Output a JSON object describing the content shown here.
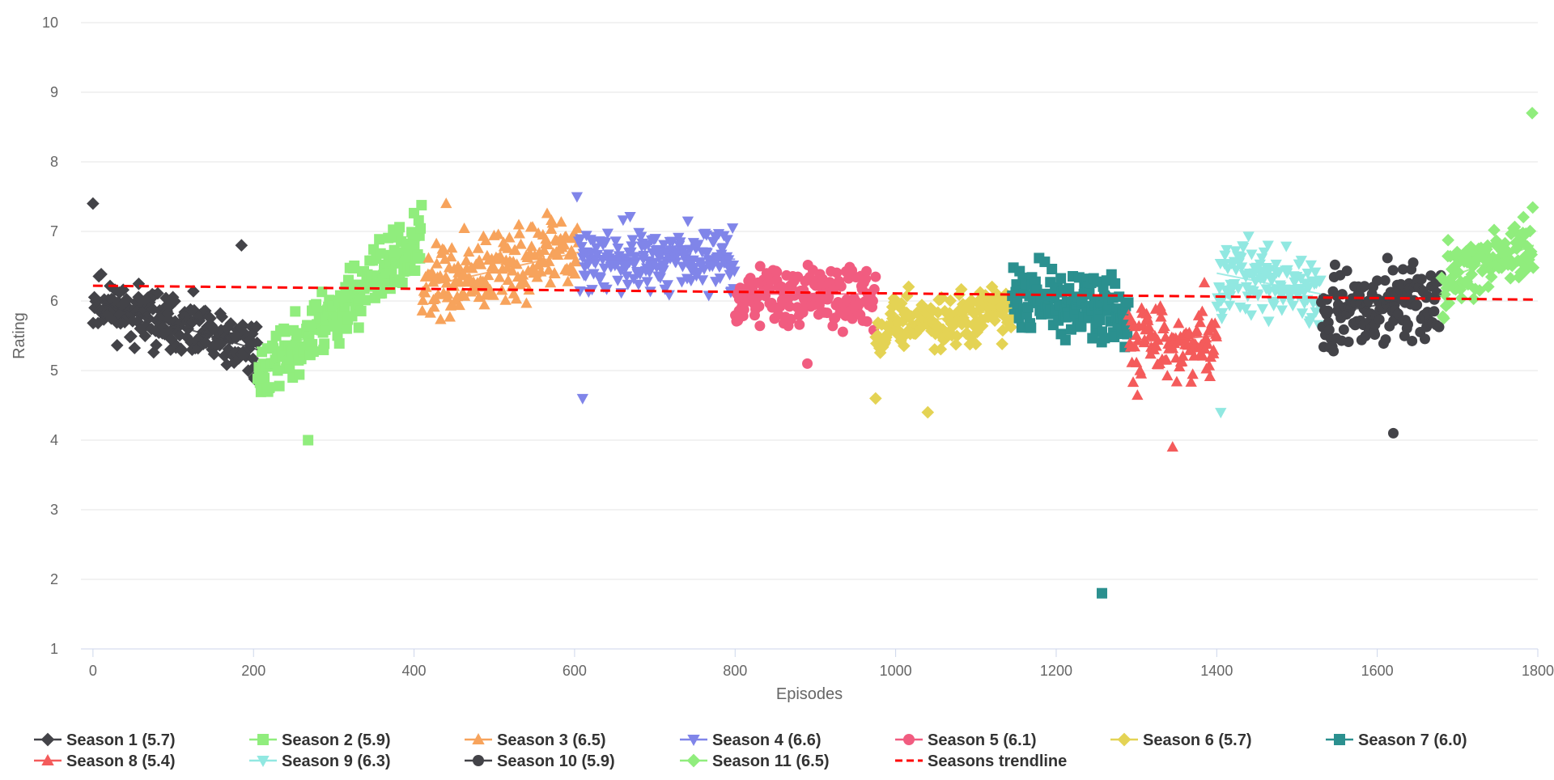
{
  "chart_data": {
    "type": "scatter",
    "title": "",
    "xlabel": "Episodes",
    "ylabel": "Rating",
    "xlim": [
      -15,
      1800
    ],
    "ylim": [
      1,
      10
    ],
    "xticks": [
      0,
      200,
      400,
      600,
      800,
      1000,
      1200,
      1400,
      1600,
      1800
    ],
    "yticks": [
      1,
      2,
      3,
      4,
      5,
      6,
      7,
      8,
      9,
      10
    ],
    "grid": "horizontal",
    "legend": "bottom",
    "series": [
      {
        "name": "Season 1 (5.7)",
        "color": "#434348",
        "marker": "diamond",
        "x_range": [
          0,
          205
        ],
        "n": 205,
        "trend": [
          6.0,
          5.3
        ],
        "spread": 0.35,
        "seed": 11,
        "outliers": [
          [
            0,
            7.4
          ],
          [
            185,
            6.8
          ]
        ]
      },
      {
        "name": "Season 2 (5.9)",
        "color": "#90ed7d",
        "marker": "square",
        "x_range": [
          205,
          410
        ],
        "n": 205,
        "trend": [
          4.9,
          6.9
        ],
        "spread": 0.4,
        "seed": 23,
        "outliers": [
          [
            268,
            4.0
          ]
        ]
      },
      {
        "name": "Season 3 (6.5)",
        "color": "#f7a35c",
        "marker": "triangle-up",
        "x_range": [
          410,
          605
        ],
        "n": 195,
        "trend": [
          6.2,
          6.7
        ],
        "spread": 0.45,
        "seed": 37,
        "outliers": [
          [
            440,
            7.4
          ]
        ]
      },
      {
        "name": "Season 4 (6.6)",
        "color": "#8085e9",
        "marker": "triangle-down",
        "x_range": [
          605,
          800
        ],
        "n": 195,
        "trend": [
          6.6,
          6.6
        ],
        "spread": 0.4,
        "seed": 41,
        "outliers": [
          [
            610,
            4.6
          ],
          [
            603,
            7.5
          ]
        ]
      },
      {
        "name": "Season 5 (6.1)",
        "color": "#f15c80",
        "marker": "circle",
        "x_range": [
          800,
          975
        ],
        "n": 175,
        "trend": [
          6.1,
          6.1
        ],
        "spread": 0.4,
        "seed": 53,
        "outliers": [
          [
            890,
            5.1
          ]
        ]
      },
      {
        "name": "Season 6 (5.7)",
        "color": "#e4d354",
        "marker": "diamond",
        "x_range": [
          975,
          1145
        ],
        "n": 170,
        "trend": [
          5.6,
          5.9
        ],
        "spread": 0.35,
        "seed": 67,
        "outliers": [
          [
            975,
            4.6
          ],
          [
            1040,
            4.4
          ]
        ]
      },
      {
        "name": "Season 7 (6.0)",
        "color": "#2b908f",
        "marker": "square",
        "x_range": [
          1145,
          1290
        ],
        "n": 145,
        "trend": [
          6.1,
          5.8
        ],
        "spread": 0.4,
        "seed": 71,
        "outliers": [
          [
            1257,
            1.8
          ]
        ]
      },
      {
        "name": "Season 8 (5.4)",
        "color": "#f45b5b",
        "marker": "triangle-up",
        "x_range": [
          1290,
          1400
        ],
        "n": 110,
        "trend": [
          5.4,
          5.5
        ],
        "spread": 0.5,
        "seed": 83,
        "outliers": [
          [
            1345,
            3.9
          ]
        ]
      },
      {
        "name": "Season 9 (6.3)",
        "color": "#91e8e1",
        "marker": "triangle-down",
        "x_range": [
          1400,
          1530
        ],
        "n": 130,
        "trend": [
          6.4,
          6.1
        ],
        "spread": 0.45,
        "seed": 97,
        "outliers": [
          [
            1405,
            4.4
          ]
        ]
      },
      {
        "name": "Season 10 (5.9)",
        "color": "#434348",
        "marker": "circle",
        "x_range": [
          1530,
          1680
        ],
        "n": 150,
        "trend": [
          5.8,
          6.1
        ],
        "spread": 0.5,
        "seed": 101,
        "outliers": [
          [
            1620,
            4.1
          ]
        ]
      },
      {
        "name": "Season 11 (6.5)",
        "color": "#90ed7d",
        "marker": "diamond",
        "x_range": [
          1680,
          1795
        ],
        "n": 115,
        "trend": [
          6.3,
          6.8
        ],
        "spread": 0.4,
        "seed": 113,
        "outliers": [
          [
            1793,
            8.7
          ]
        ]
      }
    ],
    "overall_trendline": {
      "name": "Seasons trendline",
      "color": "#ff0000",
      "dash": "dashed",
      "from": [
        0,
        6.22
      ],
      "to": [
        1795,
        6.02
      ]
    }
  }
}
